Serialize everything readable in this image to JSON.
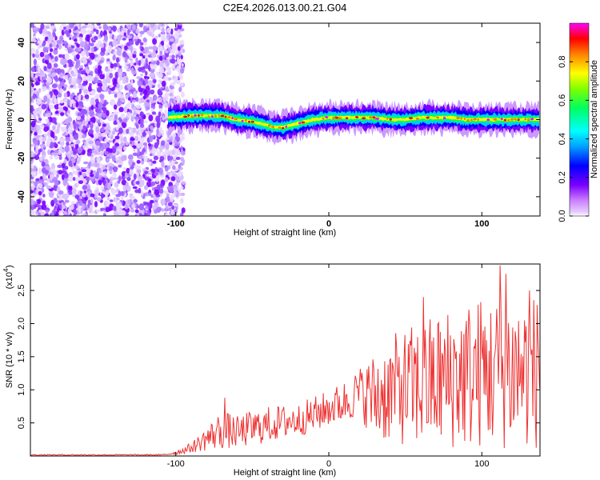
{
  "title": "C2E4.2026.013.00.21.G04",
  "chart_data": [
    {
      "type": "heatmap",
      "title": "C2E4.2026.013.00.21.G04",
      "xlabel": "Height of straight line (km)",
      "ylabel": "Frequency (Hz)",
      "xlim": [
        -195,
        138
      ],
      "ylim": [
        -50,
        50
      ],
      "xticks": [
        -100,
        0,
        100
      ],
      "yticks": [
        -40,
        -20,
        0,
        20,
        40
      ],
      "colorbar": {
        "label": "Normalized spectral amplitude",
        "range": [
          0.0,
          1.0
        ],
        "ticks": [
          0.0,
          0.2,
          0.4,
          0.6,
          0.8
        ],
        "colormap": [
          "#ffffff",
          "#cc99ff",
          "#7a00ff",
          "#0000ff",
          "#00b4ff",
          "#00ffff",
          "#00ff00",
          "#ffff00",
          "#ff8000",
          "#ff0000",
          "#ff00ff"
        ]
      },
      "noise_region_km": [
        -195,
        -98
      ],
      "ridge": {
        "x": [
          -105,
          -90,
          -80,
          -70,
          -60,
          -50,
          -40,
          -35,
          -30,
          -20,
          -10,
          0,
          10,
          20,
          30,
          40,
          50,
          60,
          70,
          80,
          90,
          100,
          110,
          120,
          130,
          138
        ],
        "frequency": [
          1,
          2,
          2,
          2,
          0,
          -1,
          -3,
          -4,
          -4,
          -2,
          0,
          1,
          1,
          1,
          1,
          0,
          0,
          1,
          1,
          1,
          0,
          0,
          0,
          0,
          0,
          0
        ]
      }
    },
    {
      "type": "line",
      "xlabel": "Height of straight line (km)",
      "ylabel": "SNR (10 * v/v)",
      "y_multiplier": "(x10",
      "y_exponent": "4",
      "xlim": [
        -195,
        138
      ],
      "ylim": [
        0,
        2.9
      ],
      "xticks": [
        -100,
        0,
        100
      ],
      "yticks": [
        0.5,
        1.0,
        1.5,
        2.0,
        2.5
      ],
      "line_color": "#ee3333",
      "envelope": {
        "x": [
          -195,
          -110,
          -100,
          -90,
          -80,
          -70,
          -60,
          -50,
          -40,
          -30,
          -20,
          -10,
          0,
          10,
          20,
          30,
          40,
          50,
          60,
          70,
          80,
          90,
          100,
          110,
          120,
          130,
          138
        ],
        "low": [
          0.0,
          0.0,
          0.02,
          0.05,
          0.08,
          0.1,
          0.12,
          0.15,
          0.2,
          0.25,
          0.3,
          0.35,
          0.45,
          0.5,
          0.6,
          0.2,
          0.2,
          0.15,
          0.1,
          0.1,
          0.1,
          0.1,
          0.1,
          0.1,
          0.1,
          0.1,
          0.1
        ],
        "high": [
          0.03,
          0.03,
          0.08,
          0.2,
          0.45,
          0.7,
          0.6,
          0.7,
          0.75,
          0.78,
          0.8,
          0.9,
          1.0,
          1.15,
          1.35,
          1.6,
          1.8,
          1.95,
          2.05,
          2.2,
          2.3,
          2.4,
          2.45,
          2.5,
          2.55,
          2.5,
          2.45
        ]
      },
      "peaks": [
        {
          "x": -68,
          "y": 0.88
        },
        {
          "x": 62,
          "y": 2.4
        },
        {
          "x": 112,
          "y": 2.88
        },
        {
          "x": 116,
          "y": 2.75
        },
        {
          "x": 131,
          "y": 2.5
        }
      ]
    }
  ]
}
